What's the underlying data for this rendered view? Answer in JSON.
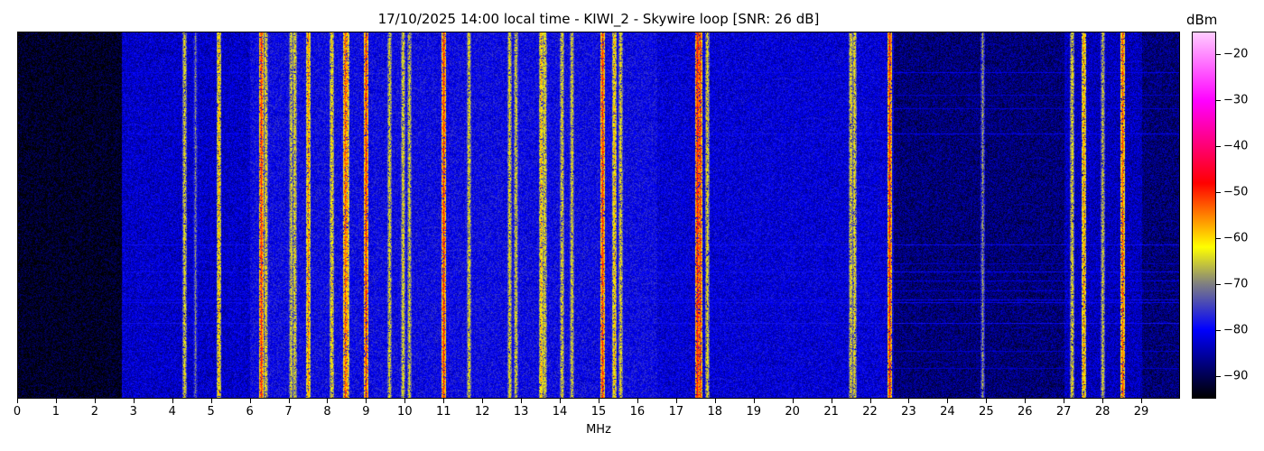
{
  "chart_data": {
    "type": "heatmap",
    "title": "17/10/2025 14:00 local time - KIWI_2 - Skywire loop [SNR: 26 dB]",
    "xlabel": "MHz",
    "xlim": [
      0,
      30
    ],
    "xticks": [
      0,
      1,
      2,
      3,
      4,
      5,
      6,
      7,
      8,
      9,
      10,
      11,
      12,
      13,
      14,
      15,
      16,
      17,
      18,
      19,
      20,
      21,
      22,
      23,
      24,
      25,
      26,
      27,
      28,
      29
    ],
    "colorbar": {
      "label": "dBm",
      "range": [
        -95,
        -15
      ],
      "ticks": [
        -20,
        -30,
        -40,
        -50,
        -60,
        -70,
        -80,
        -90
      ]
    },
    "colormap": [
      [
        "-95",
        "#000000"
      ],
      [
        "-80",
        "#0000ff"
      ],
      [
        "-70",
        "#808080"
      ],
      [
        "-62",
        "#ffff00"
      ],
      [
        "-55",
        "#ff8000"
      ],
      [
        "-48",
        "#ff0000"
      ],
      [
        "-30",
        "#ff00ff"
      ],
      [
        "-15",
        "#ffccff"
      ]
    ],
    "noise_floor_dbm": [
      [
        0,
        2.7,
        -93
      ],
      [
        2.7,
        6,
        -83
      ],
      [
        6,
        16.5,
        -80
      ],
      [
        16.5,
        22.6,
        -82
      ],
      [
        22.6,
        27,
        -88
      ],
      [
        27,
        29,
        -84
      ],
      [
        29,
        30,
        -88
      ]
    ],
    "signals_mhz_dbm": [
      [
        4.3,
        -62
      ],
      [
        4.6,
        -70
      ],
      [
        5.2,
        -58
      ],
      [
        6.3,
        -50
      ],
      [
        6.4,
        -62
      ],
      [
        7.05,
        -63
      ],
      [
        7.15,
        -62
      ],
      [
        7.5,
        -55
      ],
      [
        8.1,
        -60
      ],
      [
        8.45,
        -52
      ],
      [
        8.5,
        -56
      ],
      [
        9.0,
        -50
      ],
      [
        9.6,
        -62
      ],
      [
        9.95,
        -62
      ],
      [
        10.1,
        -63
      ],
      [
        11.0,
        -50
      ],
      [
        11.65,
        -62
      ],
      [
        12.7,
        -62
      ],
      [
        12.85,
        -63
      ],
      [
        13.5,
        -58
      ],
      [
        13.6,
        -62
      ],
      [
        14.05,
        -62
      ],
      [
        14.3,
        -63
      ],
      [
        15.1,
        -50
      ],
      [
        15.4,
        -58
      ],
      [
        15.55,
        -62
      ],
      [
        17.55,
        -48
      ],
      [
        17.6,
        -50
      ],
      [
        17.8,
        -62
      ],
      [
        21.5,
        -62
      ],
      [
        21.6,
        -62
      ],
      [
        22.5,
        -50
      ],
      [
        24.9,
        -68
      ],
      [
        27.2,
        -62
      ],
      [
        27.5,
        -56
      ],
      [
        28.0,
        -64
      ],
      [
        28.5,
        -52
      ]
    ]
  }
}
